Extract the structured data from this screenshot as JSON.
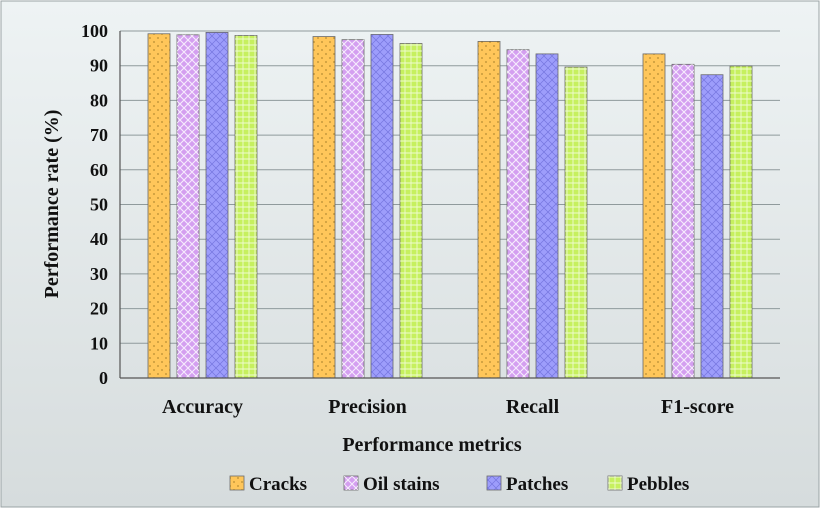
{
  "chart_data": {
    "type": "bar",
    "title": "",
    "xlabel": "Performance metrics",
    "ylabel": "Performance rate (%)",
    "ylim": [
      0,
      100
    ],
    "yticks": [
      0,
      10,
      20,
      30,
      40,
      50,
      60,
      70,
      80,
      90,
      100
    ],
    "grid": true,
    "legend_position": "bottom",
    "categories": [
      "Accuracy",
      "Precision",
      "Recall",
      "F1-score"
    ],
    "series": [
      {
        "name": "Cracks",
        "values": [
          99.2,
          98.4,
          97.0,
          93.4
        ],
        "color": "#ffc65a"
      },
      {
        "name": "Oil stains",
        "values": [
          98.9,
          97.5,
          94.6,
          90.4
        ],
        "color": "#d49ff0"
      },
      {
        "name": "Patches",
        "values": [
          99.6,
          99.0,
          93.4,
          87.4
        ],
        "color": "#9d9dfb"
      },
      {
        "name": "Pebbles",
        "values": [
          98.7,
          96.4,
          89.6,
          89.9
        ],
        "color": "#c6f05e"
      }
    ]
  }
}
